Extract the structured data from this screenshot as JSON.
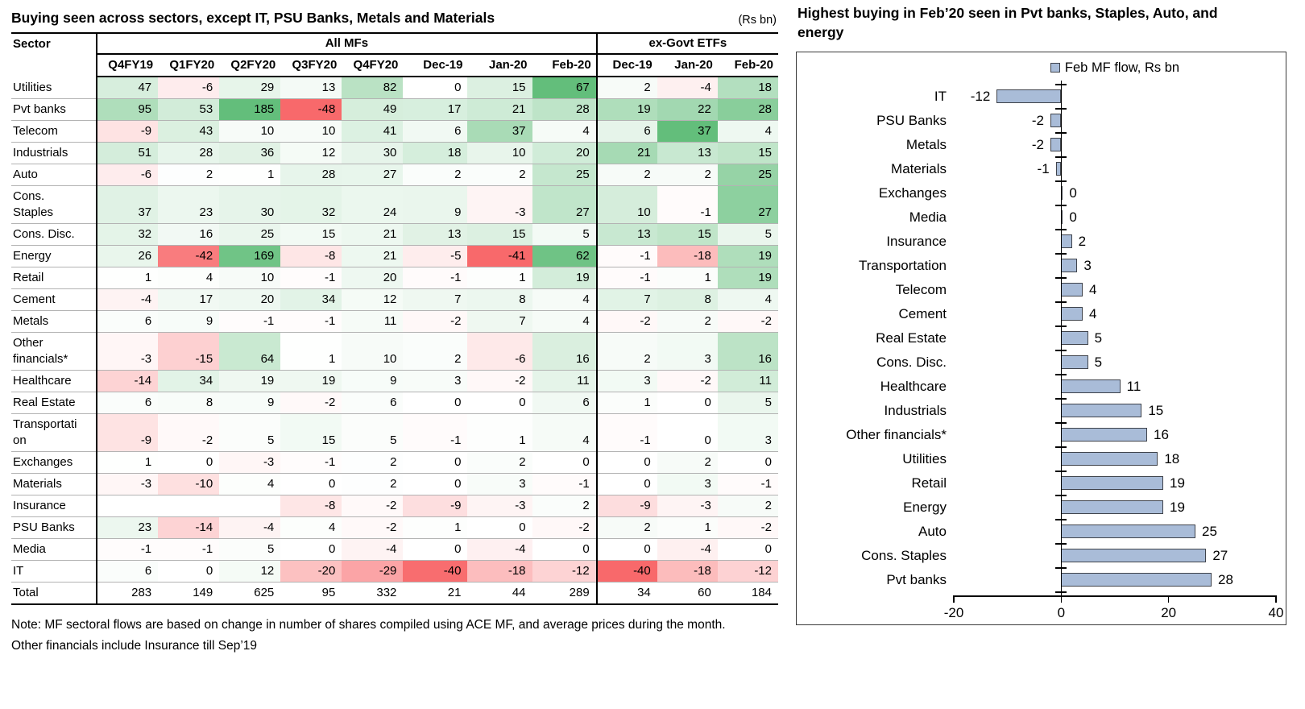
{
  "left": {
    "notes": [
      "Note: MF sectoral flows are based on change in number of shares compiled using ACE MF, and average prices during the month.",
      "Other financials include Insurance till Sep’19"
    ]
  },
  "colors": {
    "scale_green": "#63BE7B",
    "scale_red": "#F8696B",
    "scale_mid": "#FFFFFF",
    "bar_fill": "#A9BCD8",
    "bar_border": "#3F434B",
    "row_line": "#B3B3B3"
  },
  "chart_data": [
    {
      "type": "heatmap",
      "title": "Buying seen across sectors, except IT, PSU Banks, Metals and Materials",
      "unit_label": "(Rs bn)",
      "sector_header": "Sector",
      "col_groups": [
        {
          "label": "All MFs",
          "span": 8
        },
        {
          "label": "ex-Govt ETFs",
          "span": 3
        }
      ],
      "columns": [
        "Q4FY19",
        "Q1FY20",
        "Q2FY20",
        "Q3FY20",
        "Q4FY20",
        "Dec-19",
        "Jan-20",
        "Feb-20",
        "Dec-19",
        "Jan-20",
        "Feb-20"
      ],
      "scale_groups": [
        [
          0,
          4
        ],
        [
          5,
          7
        ],
        [
          8,
          10
        ]
      ],
      "rows": [
        {
          "sector": "Utilities",
          "values": [
            47,
            -6,
            29,
            13,
            82,
            0,
            15,
            67,
            2,
            -4,
            18
          ]
        },
        {
          "sector": "Pvt banks",
          "values": [
            95,
            53,
            185,
            -48,
            49,
            17,
            21,
            28,
            19,
            22,
            28
          ]
        },
        {
          "sector": "Telecom",
          "values": [
            -9,
            43,
            10,
            10,
            41,
            6,
            37,
            4,
            6,
            37,
            4
          ]
        },
        {
          "sector": "Industrials",
          "values": [
            51,
            28,
            36,
            12,
            30,
            18,
            10,
            20,
            21,
            13,
            15
          ]
        },
        {
          "sector": "Auto",
          "values": [
            -6,
            2,
            1,
            28,
            27,
            2,
            2,
            25,
            2,
            2,
            25
          ]
        },
        {
          "sector": "Cons. Staples",
          "values": [
            37,
            23,
            30,
            32,
            24,
            9,
            -3,
            27,
            10,
            -1,
            27
          ]
        },
        {
          "sector": "Cons. Disc.",
          "values": [
            32,
            16,
            25,
            15,
            21,
            13,
            15,
            5,
            13,
            15,
            5
          ]
        },
        {
          "sector": "Energy",
          "values": [
            26,
            -42,
            169,
            -8,
            21,
            -5,
            -41,
            62,
            -1,
            -18,
            19
          ]
        },
        {
          "sector": "Retail",
          "values": [
            1,
            4,
            10,
            -1,
            20,
            -1,
            1,
            19,
            -1,
            1,
            19
          ]
        },
        {
          "sector": "Cement",
          "values": [
            -4,
            17,
            20,
            34,
            12,
            7,
            8,
            4,
            7,
            8,
            4
          ]
        },
        {
          "sector": "Metals",
          "values": [
            6,
            9,
            -1,
            -1,
            11,
            -2,
            7,
            4,
            -2,
            2,
            -2
          ]
        },
        {
          "sector": "Other financials*",
          "values": [
            -3,
            -15,
            64,
            1,
            10,
            2,
            -6,
            16,
            2,
            3,
            16
          ]
        },
        {
          "sector": "Healthcare",
          "values": [
            -14,
            34,
            19,
            19,
            9,
            3,
            -2,
            11,
            3,
            -2,
            11
          ]
        },
        {
          "sector": "Real Estate",
          "values": [
            6,
            8,
            9,
            -2,
            6,
            0,
            0,
            6,
            1,
            0,
            5
          ]
        },
        {
          "sector": "Transportation",
          "values": [
            -9,
            -2,
            5,
            15,
            5,
            -1,
            1,
            4,
            -1,
            0,
            3
          ]
        },
        {
          "sector": "Exchanges",
          "values": [
            1,
            0,
            -3,
            -1,
            2,
            0,
            2,
            0,
            0,
            2,
            0
          ]
        },
        {
          "sector": "Materials",
          "values": [
            -3,
            -10,
            4,
            0,
            2,
            0,
            3,
            -1,
            0,
            3,
            -1
          ]
        },
        {
          "sector": "Insurance",
          "values": [
            null,
            null,
            null,
            -8,
            -2,
            -9,
            -3,
            2,
            -9,
            -3,
            2
          ]
        },
        {
          "sector": "PSU Banks",
          "values": [
            23,
            -14,
            -4,
            4,
            -2,
            1,
            0,
            -2,
            2,
            1,
            -2
          ]
        },
        {
          "sector": "Media",
          "values": [
            -1,
            -1,
            5,
            0,
            -4,
            0,
            -4,
            0,
            0,
            -4,
            0
          ]
        },
        {
          "sector": "IT",
          "values": [
            6,
            0,
            12,
            -20,
            -29,
            -40,
            -18,
            -12,
            -40,
            -18,
            -12
          ]
        }
      ],
      "total": {
        "sector": "Total",
        "values": [
          283,
          149,
          625,
          95,
          332,
          21,
          44,
          289,
          34,
          60,
          184
        ]
      }
    },
    {
      "type": "bar",
      "orientation": "horizontal",
      "title": "Highest buying in Feb’20 seen in Pvt banks, Staples, Auto, and energy",
      "legend": "Feb MF flow, Rs bn",
      "categories": [
        "IT",
        "PSU Banks",
        "Metals",
        "Materials",
        "Exchanges",
        "Media",
        "Insurance",
        "Transportation",
        "Telecom",
        "Cement",
        "Real Estate",
        "Cons. Disc.",
        "Healthcare",
        "Industrials",
        "Other financials*",
        "Utilities",
        "Retail",
        "Energy",
        "Auto",
        "Cons. Staples",
        "Pvt banks"
      ],
      "values": [
        -12,
        -2,
        -2,
        -1,
        0,
        0,
        2,
        3,
        4,
        4,
        5,
        5,
        11,
        15,
        16,
        18,
        19,
        19,
        25,
        27,
        28
      ],
      "xlim": [
        -20,
        40
      ],
      "xticks": [
        -20,
        0,
        20,
        40
      ]
    }
  ]
}
